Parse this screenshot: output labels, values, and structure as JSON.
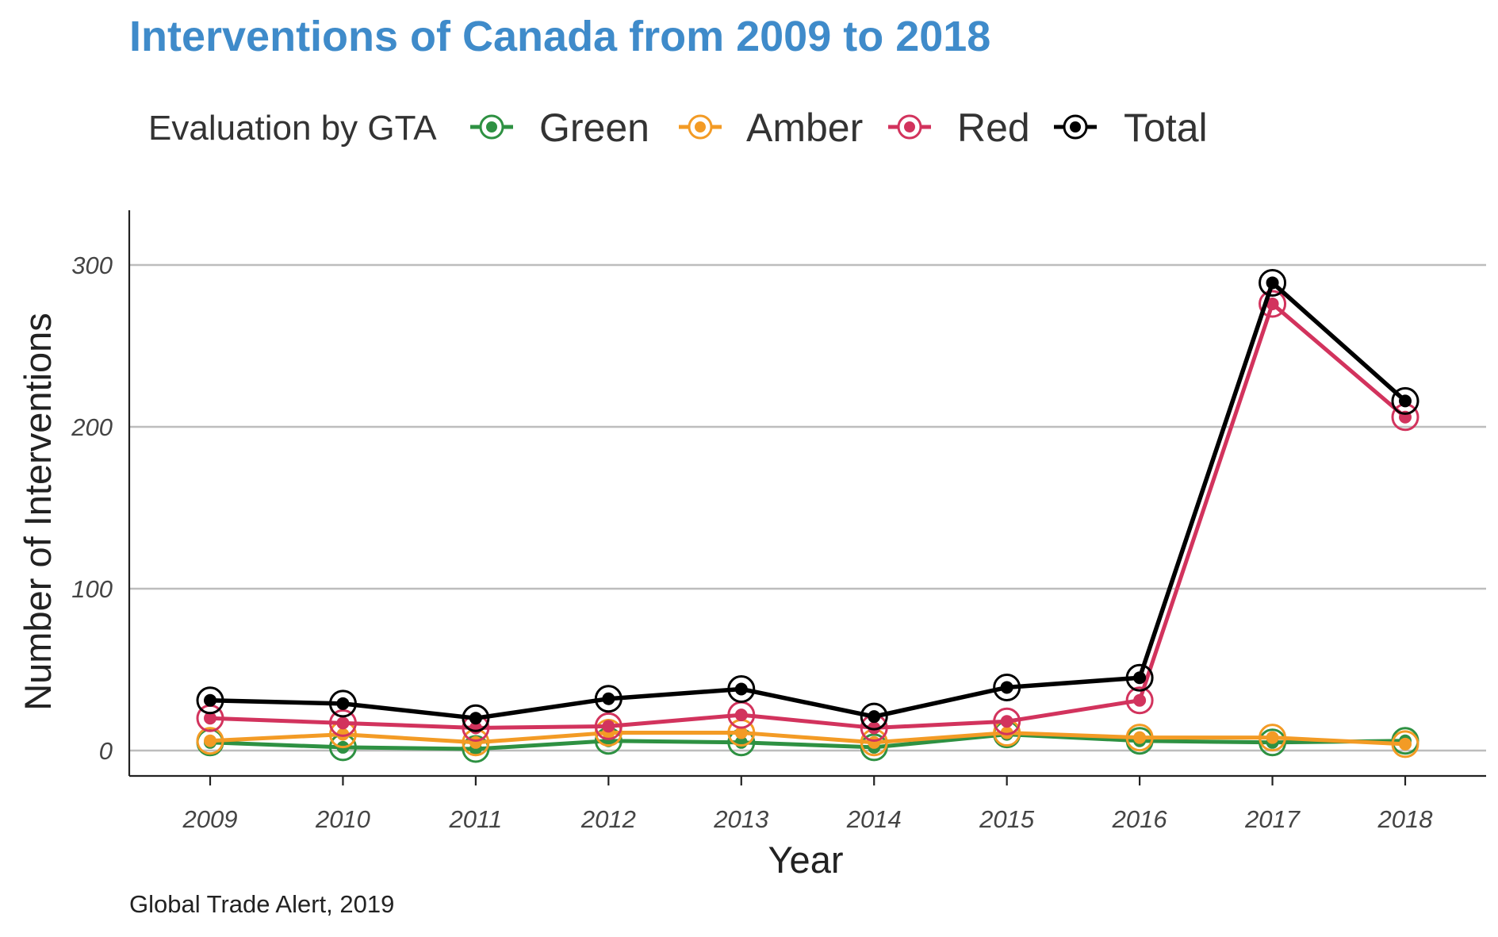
{
  "chart_data": {
    "type": "line",
    "title": "Interventions of Canada from 2009 to 2018",
    "xlabel": "Year",
    "ylabel": "Number of Interventions",
    "caption": "Global Trade Alert, 2019",
    "legend_title": "Evaluation by GTA",
    "legend_position": "top",
    "grid": "horizontal major",
    "categories": [
      "2009",
      "2010",
      "2011",
      "2012",
      "2013",
      "2014",
      "2015",
      "2016",
      "2017",
      "2018"
    ],
    "ylim": [
      -15,
      333
    ],
    "yticks": [
      0,
      100,
      200,
      300
    ],
    "ytick_labels": [
      "0",
      "100",
      "200",
      "300"
    ],
    "series": [
      {
        "name": "Green",
        "color": "#2e9142",
        "values": [
          5,
          2,
          1,
          6,
          5,
          2,
          10,
          6,
          5,
          6
        ]
      },
      {
        "name": "Amber",
        "color": "#f39b25",
        "values": [
          6,
          10,
          5,
          11,
          11,
          5,
          11,
          8,
          8,
          4
        ]
      },
      {
        "name": "Red",
        "color": "#d2335d",
        "values": [
          20,
          17,
          14,
          15,
          22,
          14,
          18,
          31,
          276,
          206
        ]
      },
      {
        "name": "Total",
        "color": "#000000",
        "values": [
          31,
          29,
          20,
          32,
          38,
          21,
          39,
          45,
          289,
          216
        ]
      }
    ],
    "title_color": "#3f8bca"
  }
}
